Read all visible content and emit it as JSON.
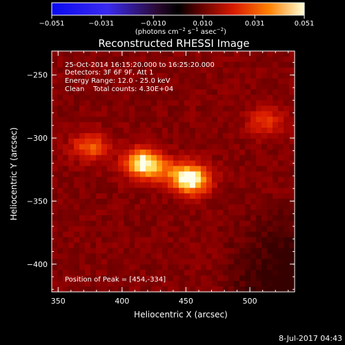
{
  "chart_data": {
    "type": "heatmap",
    "title": "Reconstructed RHESSI Image",
    "xlabel": "Heliocentric X (arcsec)",
    "ylabel": "Heliocentric Y (arcsec)",
    "xlim": [
      345,
      535
    ],
    "ylim": [
      -422,
      -231
    ],
    "xticks": [
      {
        "value": 350,
        "label": "350"
      },
      {
        "value": 400,
        "label": "400"
      },
      {
        "value": 450,
        "label": "450"
      },
      {
        "value": 500,
        "label": "500"
      }
    ],
    "yticks": [
      {
        "value": -250,
        "label": "−250"
      },
      {
        "value": -300,
        "label": "−300"
      },
      {
        "value": -350,
        "label": "−350"
      },
      {
        "value": -400,
        "label": "−400"
      }
    ],
    "colorbar": {
      "min": -0.051,
      "max": 0.051,
      "ticks": [
        {
          "value": -0.051,
          "label": "−0.051"
        },
        {
          "value": -0.031,
          "label": "−0.031"
        },
        {
          "value": -0.01,
          "label": "−0.010"
        },
        {
          "value": 0.01,
          "label": "0.010"
        },
        {
          "value": 0.031,
          "label": "0.031"
        },
        {
          "value": 0.051,
          "label": "0.051"
        }
      ],
      "units_text": "(photons cm",
      "units_exp1": "−2",
      "units_mid": " s",
      "units_exp2": "−1",
      "units_mid2": " asec",
      "units_exp3": "−2",
      "units_end": ")"
    },
    "annotations": [
      "25-Oct-2014 16:15:20.000 to 16:25:20.000",
      "Detectors: 3F 6F 9F, Att 1",
      "Energy Range: 12.0 - 25.0 keV",
      "Clean    Total counts: 4.30E+04"
    ],
    "peak_label": "Position of Peak = [454,-334]",
    "sources": [
      {
        "x": 454,
        "y": -334,
        "peak": 1.0
      },
      {
        "x": 416,
        "y": -319,
        "peak": 0.92
      },
      {
        "x": 375,
        "y": -307,
        "peak": 0.55
      },
      {
        "x": 512,
        "y": -287,
        "peak": 0.42
      }
    ],
    "background_level": 0.2
  },
  "footer": {
    "date": "8-Jul-2017 04:43"
  }
}
